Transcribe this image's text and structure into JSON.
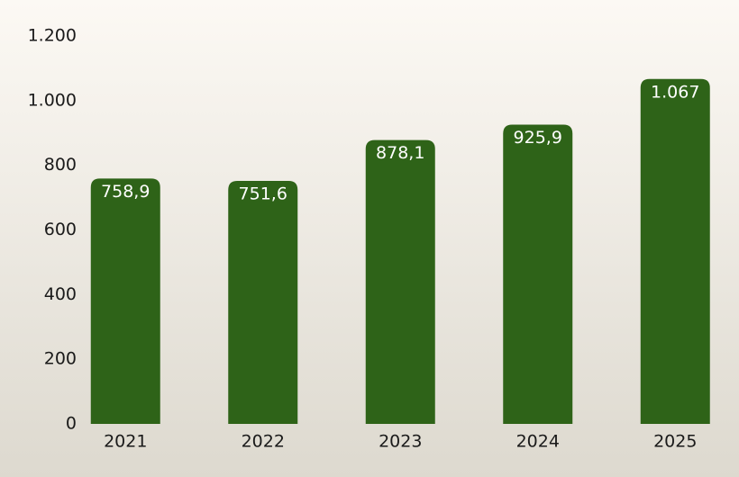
{
  "chart_data": {
    "type": "bar",
    "categories": [
      "2021",
      "2022",
      "2023",
      "2024",
      "2025"
    ],
    "values": [
      758.9,
      751.6,
      878.1,
      925.9,
      1067
    ],
    "value_labels": [
      "758,9",
      "751,6",
      "878,1",
      "925,9",
      "1.067"
    ],
    "color": "#2e6318",
    "ylim": [
      0,
      1200
    ],
    "yticks": [
      0,
      200,
      400,
      600,
      800,
      {
        "value": 1000,
        "label": "1.000"
      },
      {
        "value": 1200,
        "label": "1.200"
      }
    ],
    "grid": false
  }
}
